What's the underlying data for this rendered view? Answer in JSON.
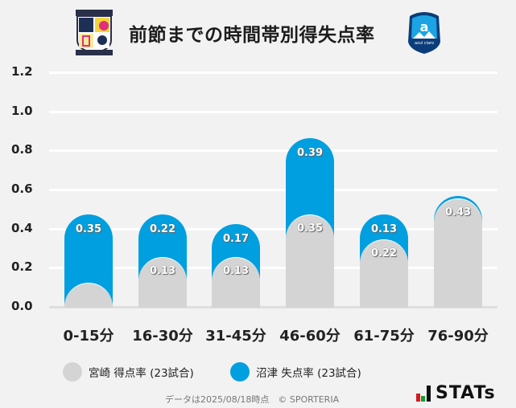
{
  "title": "前節までの時間帯別得失点率",
  "logos": {
    "home": {
      "name": "Tegevajaro Miyazaki crest",
      "text_top": "TEGEVAJARO",
      "text_bottom": "MIYAZAKI"
    },
    "away": {
      "name": "Azul Claro Numazu crest",
      "text": "azul claro",
      "year": "1990"
    }
  },
  "chart_data": {
    "type": "bar",
    "title": "前節までの時間帯別得失点率",
    "categories": [
      "0-15分",
      "16-30分",
      "31-45分",
      "46-60分",
      "61-75分",
      "76-90分"
    ],
    "series": [
      {
        "name": "宮崎 得点率 (23試合)",
        "color": "#d4d4d4",
        "values": [
          0.0,
          0.13,
          0.13,
          0.35,
          0.22,
          0.43
        ],
        "labels": [
          "",
          "0.13",
          "0.13",
          "0.35",
          "0.22",
          "0.43"
        ]
      },
      {
        "name": "沼津 失点率 (23試合)",
        "color": "#009fe0",
        "values": [
          0.35,
          0.22,
          0.17,
          0.39,
          0.13,
          0.0
        ],
        "labels": [
          "0.35",
          "0.22",
          "0.17",
          "0.39",
          "0.13",
          ""
        ]
      }
    ],
    "yticks": [
      "1.2",
      "1.0",
      "0.8",
      "0.6",
      "0.4",
      "0.2",
      "0.0"
    ],
    "ylim": [
      0,
      1.2
    ],
    "grid": true,
    "legend_position": "bottom",
    "xlabel": "",
    "ylabel": ""
  },
  "legend": [
    {
      "label": "宮崎 得点率 (23試合)",
      "color": "#d4d4d4"
    },
    {
      "label": "沼津 失点率 (23試合)",
      "color": "#009fe0"
    }
  ],
  "footer": "データは2025/08/18時点　© SPORTERIA",
  "brand": "STATs"
}
